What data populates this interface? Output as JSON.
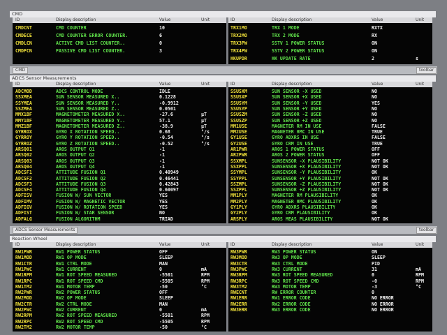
{
  "columns": [
    "ID",
    "Display description",
    "Value",
    "Unit"
  ],
  "windows": [
    {
      "title": "CMD",
      "tab": "CMD",
      "toolbar": "toolbar",
      "left": [
        [
          "CMDCNT",
          "CMD COUNTER",
          "10"
        ],
        [
          "CMDECE",
          "CMD COUNTER ERROR COUNTER.",
          "6"
        ],
        [
          "CMDLCN",
          "ACTIVE CMD LIST COUNTER..",
          "0"
        ],
        [
          "CMDPCN",
          "PASSIVE CMD LIST COUNTER.",
          "3"
        ]
      ],
      "right": [
        [
          "TRX1MO",
          "TRX 1 MODE",
          "RXTX"
        ],
        [
          "TRX2MO",
          "TRX 2 MODE",
          "RX"
        ],
        [
          "TRX3PW",
          "SSTV 1 POWER STATUS",
          "ON"
        ],
        [
          "TRX4PW",
          "SSTV 2 POWER STATUS",
          "ON"
        ],
        [
          "HKUPDR",
          "HK UPDATE RATE",
          "2",
          "s"
        ]
      ]
    },
    {
      "title": "ADCS Sensor Measurements",
      "tab": "ADCS Sensor Measurements",
      "toolbar": "toolbar",
      "left": [
        [
          "ADCMOD",
          "ADCS CONTROL MODE",
          "IDLE"
        ],
        [
          "SSXMEA",
          "SUN SENSOR MEASURED X..",
          "0.1228"
        ],
        [
          "SSYMEA",
          "SUN SENSOR MEASURED Y..",
          "-0.9912"
        ],
        [
          "SSZMEA",
          "SUN SENSOR MEASURED Z..",
          "0.0501"
        ],
        [
          "MMX1BF",
          "MAGNETOMETER MEASURED X..",
          "-27.6",
          "µT"
        ],
        [
          "MMY1BF",
          "MAGNETOMETER MEASURED Y..",
          "57.1",
          "µT"
        ],
        [
          "MMZ1BF",
          "MAGNETOMETER MEASURED Z..",
          "-38.9",
          "µT"
        ],
        [
          "GYRROX",
          "GYRO X ROTATION SPEED..",
          "0.68",
          "°/s"
        ],
        [
          "GYRROY",
          "GYRO Y ROTATION SPEED..",
          "-0.54",
          "°/s"
        ],
        [
          "GYRROZ",
          "GYRO Z ROTATION SPEED..",
          "-0.52",
          "°/s"
        ],
        [
          "ARSQ01",
          "AROS OUTPUT Q1",
          "-1"
        ],
        [
          "ARSQ02",
          "AROS OUTPUT Q2",
          "-1"
        ],
        [
          "ARSQ03",
          "AROS OUTPUT Q3",
          "-1"
        ],
        [
          "ARSQ04",
          "AROS OUTPUT Q4",
          "-1"
        ],
        [
          "ADCSF1",
          "ATTITUDE FUSION Q1",
          "0.40949"
        ],
        [
          "ADCSF2",
          "ATTITUDE FUSION Q2",
          "0.46441"
        ],
        [
          "ADCSF3",
          "ATTITUDE FUSION Q3",
          "0.42843"
        ],
        [
          "ADCSF4",
          "ATTITUDE FUSION Q4",
          "0.60097"
        ],
        [
          "ADFISV",
          "FUSION W/ SUN VECTOR",
          "YES"
        ],
        [
          "ADFIMV",
          "FUSION W/ MAGNETIC VECTOR",
          "YES"
        ],
        [
          "ADFIGV",
          "FUSION W/ ROTATION SPEED",
          "YES"
        ],
        [
          "ADFIST",
          "FUSION W/ STAR SENSOR",
          "NO"
        ],
        [
          "ADFALG",
          "FUSION ALGORITHM",
          "TRIAD"
        ]
      ],
      "right": [
        [
          "SSUSXM",
          "SUN SENSOR -X USED",
          "NO"
        ],
        [
          "SSUSXP",
          "SUN SENSOR +X USED",
          "NO"
        ],
        [
          "SSUSYM",
          "SUN SENSOR -Y USED",
          "YES"
        ],
        [
          "SSUSYP",
          "SUN SENSOR +Y USED",
          "NO"
        ],
        [
          "SSUSZM",
          "SUN SENSOR -Z USED",
          "NO"
        ],
        [
          "SSUSZP",
          "SUN SENSOR +Z USED",
          "NO"
        ],
        [
          "MM1USE",
          "MAGNETER RM IN USE",
          "FALSE"
        ],
        [
          "MM2USE",
          "MAGNETER HMC IN USE",
          "TRUE"
        ],
        [
          "GY1USE",
          "GYRO ADXRS IN USE",
          "FALSE"
        ],
        [
          "GY2USE",
          "GYRO CRM IN USE",
          "TRUE"
        ],
        [
          "AR1PWR",
          "AROS 1 POWER STATUS",
          "OFF"
        ],
        [
          "AR2PWR",
          "AROS 2 POWER STATUS",
          "OFF"
        ],
        [
          "SSXMPL",
          "SUNSENSOR -X PLAUSIBILITY",
          "NOT OK"
        ],
        [
          "SSXPPL",
          "SUNSENSOR +X PLAUSIBILITY",
          "NOT OK"
        ],
        [
          "SSYMPL",
          "SUNSENSOR -Y PLAUSIBILITY",
          "OK"
        ],
        [
          "SSYPPL",
          "SUNSENSOR +Y PLAUSIBILITY",
          "NOT OK"
        ],
        [
          "SSZMPL",
          "SUNSENSOR -Z PLAUSIBILITY",
          "NOT OK"
        ],
        [
          "SSZPPL",
          "SUNSENSOR +Z PLAUSIBILITY",
          "NOT OK"
        ],
        [
          "MM1PLY",
          "MAGNETER RM PLAUSIBILITY",
          "OK"
        ],
        [
          "MM2PLY",
          "MAGNETER HMC PLAUSIBILITY",
          "OK"
        ],
        [
          "GY1PLY",
          "GYRO ADXRS PLAUSIBILITY",
          "OK"
        ],
        [
          "GY2PLY",
          "GYRO CRM PLAUSIBILITY",
          "OK"
        ],
        [
          "ARSPLY",
          "AROS MEAS PLAUSIBILITY",
          "NOT OK"
        ]
      ]
    },
    {
      "title": "Reaction Wheel",
      "left": [
        [
          "RW1PWR",
          "RW1 POWER STATUS",
          "OFF"
        ],
        [
          "RW1MOD",
          "RW1 OP MODE",
          "SLEEP"
        ],
        [
          "RW1CTR",
          "RW1 CTRL MODE",
          "MAN"
        ],
        [
          "RW1PWC",
          "RW1 CURRENT",
          "0",
          "mA"
        ],
        [
          "RW1RPM",
          "RW1 ROT SPEED MEASURED",
          "-5501",
          "RPM"
        ],
        [
          "RW1RPC",
          "RW1 ROT SPEED CMD",
          "-5505",
          "RPM"
        ],
        [
          "RW1TM2",
          "RW1 MOTOR TEMP",
          "-50",
          "°C"
        ],
        [
          "RW2PWR",
          "RW2 POWER STATUS",
          "OFF"
        ],
        [
          "RW2MOD",
          "RW2 OP MODE",
          "SLEEP"
        ],
        [
          "RW2CTR",
          "RW2 CTRL MODE",
          "MAN"
        ],
        [
          "RW2PWC",
          "RW2 CURRENT",
          "0",
          "mA"
        ],
        [
          "RW2RPM",
          "RW2 ROT SPEED MEASURED",
          "-5501",
          "RPM"
        ],
        [
          "RW2RPC",
          "RW2 ROT SPEED CMD",
          "-5505",
          "RPM"
        ],
        [
          "RW2TM2",
          "RW2 MOTOR TEMP",
          "-50",
          "°C"
        ]
      ],
      "right": [
        [
          "RW3PWR",
          "RW3 POWER STATUS",
          "ON"
        ],
        [
          "RW3MOD",
          "RW3 OP MODE",
          "SLEEP"
        ],
        [
          "RW3CTR",
          "RW3 CTRL MODE",
          "PID"
        ],
        [
          "RW3PWC",
          "RW3 CURRENT",
          "31",
          "mA"
        ],
        [
          "RW3RPM",
          "RW3 ROT SPEED MEASURED",
          "0",
          "RPM"
        ],
        [
          "RW3RPC",
          "RW3 ROT SPEED CMD",
          "-0",
          "RPM"
        ],
        [
          "RW3TM2",
          "RW3 MOTOR TEMP",
          "-3",
          "°C"
        ],
        [
          "RWECNT",
          "RW ERROR COUNTER",
          "0"
        ],
        [
          "RW1ERR",
          "RW1 ERROR CODE",
          "NO ERROR"
        ],
        [
          "RW2ERR",
          "RW2 ERROR CODE",
          "NO ERROR"
        ],
        [
          "RW3ERR",
          "RW3 ERROR CODE",
          "NO ERROR"
        ]
      ]
    }
  ]
}
